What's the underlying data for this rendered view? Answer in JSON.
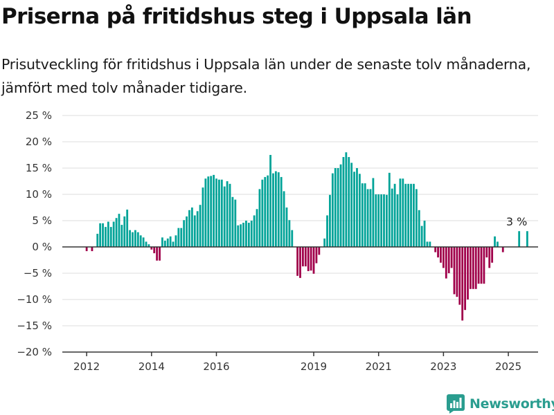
{
  "header": {
    "title": "Priserna på fritidshus steg i Uppsala län",
    "subtitle": "Prisutveckling för fritidshus i Uppsala län under de senaste tolv månaderna, jämfört med tolv månader tidigare."
  },
  "brand": {
    "name": "Newsworthy",
    "icon": "bar-chart-logo-icon"
  },
  "colors": {
    "positive": "#00a398",
    "negative": "#a0004a",
    "grid": "#dddddd",
    "axis": "#333333",
    "text": "#333333"
  },
  "chart_data": {
    "type": "bar",
    "unit": "%",
    "ylim": [
      -20,
      25
    ],
    "yticks": [
      -20,
      -15,
      -10,
      -5,
      0,
      5,
      10,
      15,
      20,
      25
    ],
    "ytick_labels": [
      "−20 %",
      "−15 %",
      "−10 %",
      "−5 %",
      "0 %",
      "5 %",
      "10 %",
      "15 %",
      "20 %",
      "25 %"
    ],
    "xlim": [
      "2011-04",
      "2025-12"
    ],
    "xticks": [
      "2012",
      "2014",
      "2016",
      "2019",
      "2021",
      "2023",
      "2025"
    ],
    "grid": true,
    "annotation": {
      "text": "3 %",
      "x": "2025-08",
      "y": 3
    },
    "series": [
      {
        "points": [
          {
            "x": "2012-01",
            "y": -0.8
          },
          {
            "x": "2012-03",
            "y": -0.8
          },
          {
            "x": "2012-05",
            "y": 2.5
          },
          {
            "x": "2012-06",
            "y": 4.5
          },
          {
            "x": "2012-07",
            "y": 4.5
          },
          {
            "x": "2012-08",
            "y": 3.8
          },
          {
            "x": "2012-09",
            "y": 4.8
          },
          {
            "x": "2012-10",
            "y": 3.8
          },
          {
            "x": "2012-11",
            "y": 4.8
          },
          {
            "x": "2012-12",
            "y": 5.5
          },
          {
            "x": "2013-01",
            "y": 6.3
          },
          {
            "x": "2013-02",
            "y": 4.2
          },
          {
            "x": "2013-03",
            "y": 5.8
          },
          {
            "x": "2013-04",
            "y": 7.1
          },
          {
            "x": "2013-05",
            "y": 3.2
          },
          {
            "x": "2013-06",
            "y": 2.8
          },
          {
            "x": "2013-07",
            "y": 3.2
          },
          {
            "x": "2013-08",
            "y": 2.8
          },
          {
            "x": "2013-09",
            "y": 2.2
          },
          {
            "x": "2013-10",
            "y": 1.8
          },
          {
            "x": "2013-11",
            "y": 1.0
          },
          {
            "x": "2013-12",
            "y": 0.5
          },
          {
            "x": "2014-01",
            "y": -0.5
          },
          {
            "x": "2014-02",
            "y": -1.2
          },
          {
            "x": "2014-03",
            "y": -2.6
          },
          {
            "x": "2014-04",
            "y": -2.6
          },
          {
            "x": "2014-05",
            "y": 1.8
          },
          {
            "x": "2014-06",
            "y": 1.2
          },
          {
            "x": "2014-07",
            "y": 1.6
          },
          {
            "x": "2014-08",
            "y": 2.0
          },
          {
            "x": "2014-09",
            "y": 1.0
          },
          {
            "x": "2014-10",
            "y": 2.2
          },
          {
            "x": "2014-11",
            "y": 3.6
          },
          {
            "x": "2014-12",
            "y": 3.6
          },
          {
            "x": "2015-01",
            "y": 5.1
          },
          {
            "x": "2015-02",
            "y": 5.8
          },
          {
            "x": "2015-03",
            "y": 7.0
          },
          {
            "x": "2015-04",
            "y": 7.5
          },
          {
            "x": "2015-05",
            "y": 6.0
          },
          {
            "x": "2015-06",
            "y": 6.8
          },
          {
            "x": "2015-07",
            "y": 8.0
          },
          {
            "x": "2015-08",
            "y": 11.3
          },
          {
            "x": "2015-09",
            "y": 13.0
          },
          {
            "x": "2015-10",
            "y": 13.4
          },
          {
            "x": "2015-11",
            "y": 13.5
          },
          {
            "x": "2015-12",
            "y": 13.7
          },
          {
            "x": "2016-01",
            "y": 13.0
          },
          {
            "x": "2016-02",
            "y": 12.8
          },
          {
            "x": "2016-03",
            "y": 12.8
          },
          {
            "x": "2016-04",
            "y": 11.5
          },
          {
            "x": "2016-05",
            "y": 12.5
          },
          {
            "x": "2016-06",
            "y": 12.0
          },
          {
            "x": "2016-07",
            "y": 9.5
          },
          {
            "x": "2016-08",
            "y": 9.0
          },
          {
            "x": "2016-09",
            "y": 4.1
          },
          {
            "x": "2016-10",
            "y": 4.3
          },
          {
            "x": "2016-11",
            "y": 4.6
          },
          {
            "x": "2016-12",
            "y": 5.0
          },
          {
            "x": "2017-01",
            "y": 4.6
          },
          {
            "x": "2017-02",
            "y": 5.0
          },
          {
            "x": "2017-03",
            "y": 6.0
          },
          {
            "x": "2017-04",
            "y": 7.2
          },
          {
            "x": "2017-05",
            "y": 11.0
          },
          {
            "x": "2017-06",
            "y": 12.8
          },
          {
            "x": "2017-07",
            "y": 13.3
          },
          {
            "x": "2017-08",
            "y": 13.6
          },
          {
            "x": "2017-09",
            "y": 17.5
          },
          {
            "x": "2017-10",
            "y": 14.0
          },
          {
            "x": "2017-11",
            "y": 14.4
          },
          {
            "x": "2017-12",
            "y": 14.2
          },
          {
            "x": "2018-01",
            "y": 13.3
          },
          {
            "x": "2018-02",
            "y": 10.6
          },
          {
            "x": "2018-03",
            "y": 7.5
          },
          {
            "x": "2018-04",
            "y": 5.1
          },
          {
            "x": "2018-05",
            "y": 3.2
          },
          {
            "x": "2018-07",
            "y": -5.5
          },
          {
            "x": "2018-08",
            "y": -5.9
          },
          {
            "x": "2018-09",
            "y": -3.7
          },
          {
            "x": "2018-10",
            "y": -3.7
          },
          {
            "x": "2018-11",
            "y": -4.6
          },
          {
            "x": "2018-12",
            "y": -4.5
          },
          {
            "x": "2019-01",
            "y": -5.1
          },
          {
            "x": "2019-02",
            "y": -3.1
          },
          {
            "x": "2019-03",
            "y": -1.5
          },
          {
            "x": "2019-05",
            "y": 1.6
          },
          {
            "x": "2019-06",
            "y": 6.0
          },
          {
            "x": "2019-07",
            "y": 9.9
          },
          {
            "x": "2019-08",
            "y": 14.0
          },
          {
            "x": "2019-09",
            "y": 15.0
          },
          {
            "x": "2019-10",
            "y": 15.0
          },
          {
            "x": "2019-11",
            "y": 15.7
          },
          {
            "x": "2019-12",
            "y": 17.1
          },
          {
            "x": "2020-01",
            "y": 18.0
          },
          {
            "x": "2020-02",
            "y": 17.1
          },
          {
            "x": "2020-03",
            "y": 16.0
          },
          {
            "x": "2020-04",
            "y": 14.3
          },
          {
            "x": "2020-05",
            "y": 15.0
          },
          {
            "x": "2020-06",
            "y": 13.9
          },
          {
            "x": "2020-07",
            "y": 12.1
          },
          {
            "x": "2020-08",
            "y": 12.1
          },
          {
            "x": "2020-09",
            "y": 11.0
          },
          {
            "x": "2020-10",
            "y": 11.0
          },
          {
            "x": "2020-11",
            "y": 13.1
          },
          {
            "x": "2020-12",
            "y": 10.0
          },
          {
            "x": "2021-01",
            "y": 10.0
          },
          {
            "x": "2021-02",
            "y": 10.0
          },
          {
            "x": "2021-03",
            "y": 10.0
          },
          {
            "x": "2021-04",
            "y": 9.9
          },
          {
            "x": "2021-05",
            "y": 14.1
          },
          {
            "x": "2021-06",
            "y": 11.1
          },
          {
            "x": "2021-07",
            "y": 12.0
          },
          {
            "x": "2021-08",
            "y": 10.0
          },
          {
            "x": "2021-09",
            "y": 13.0
          },
          {
            "x": "2021-10",
            "y": 13.0
          },
          {
            "x": "2021-11",
            "y": 12.0
          },
          {
            "x": "2021-12",
            "y": 12.0
          },
          {
            "x": "2022-01",
            "y": 12.0
          },
          {
            "x": "2022-02",
            "y": 12.0
          },
          {
            "x": "2022-03",
            "y": 11.0
          },
          {
            "x": "2022-04",
            "y": 7.0
          },
          {
            "x": "2022-05",
            "y": 4.0
          },
          {
            "x": "2022-06",
            "y": 5.0
          },
          {
            "x": "2022-07",
            "y": 1.0
          },
          {
            "x": "2022-08",
            "y": 1.0
          },
          {
            "x": "2022-10",
            "y": -1.0
          },
          {
            "x": "2022-11",
            "y": -2.0
          },
          {
            "x": "2022-12",
            "y": -3.0
          },
          {
            "x": "2023-01",
            "y": -4.0
          },
          {
            "x": "2023-02",
            "y": -6.0
          },
          {
            "x": "2023-03",
            "y": -5.0
          },
          {
            "x": "2023-04",
            "y": -4.0
          },
          {
            "x": "2023-05",
            "y": -9.0
          },
          {
            "x": "2023-06",
            "y": -9.5
          },
          {
            "x": "2023-07",
            "y": -11.0
          },
          {
            "x": "2023-08",
            "y": -14.0
          },
          {
            "x": "2023-09",
            "y": -12.0
          },
          {
            "x": "2023-10",
            "y": -10.0
          },
          {
            "x": "2023-11",
            "y": -8.0
          },
          {
            "x": "2023-12",
            "y": -8.0
          },
          {
            "x": "2024-01",
            "y": -8.0
          },
          {
            "x": "2024-02",
            "y": -7.0
          },
          {
            "x": "2024-03",
            "y": -7.0
          },
          {
            "x": "2024-04",
            "y": -7.0
          },
          {
            "x": "2024-05",
            "y": -2.0
          },
          {
            "x": "2024-06",
            "y": -4.0
          },
          {
            "x": "2024-07",
            "y": -3.0
          },
          {
            "x": "2024-08",
            "y": 2.0
          },
          {
            "x": "2024-09",
            "y": 1.0
          },
          {
            "x": "2024-11",
            "y": -1.0
          },
          {
            "x": "2025-05",
            "y": 3.0
          },
          {
            "x": "2025-08",
            "y": 3.0
          }
        ]
      }
    ]
  }
}
